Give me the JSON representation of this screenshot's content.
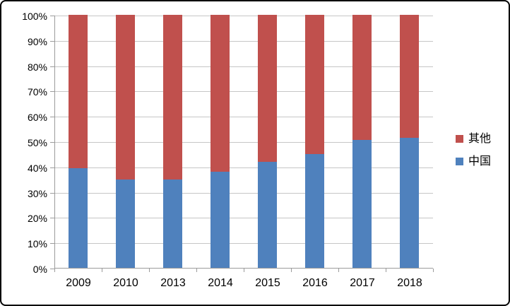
{
  "chart_data": {
    "type": "bar",
    "subtype": "stacked-100-percent-column",
    "title": "",
    "xlabel": "",
    "ylabel": "",
    "categories": [
      "2009",
      "2010",
      "2013",
      "2014",
      "2015",
      "2016",
      "2017",
      "2018"
    ],
    "series": [
      {
        "name": "中国",
        "color": "#4F81BD",
        "values": [
          39.5,
          35,
          35,
          38,
          42,
          45,
          50.5,
          51.5
        ]
      },
      {
        "name": "其他",
        "color": "#C0504D",
        "values": [
          60.5,
          65,
          65,
          62,
          58,
          55,
          49.5,
          48.5
        ]
      }
    ],
    "legend": [
      {
        "label": "其他",
        "color": "#C0504D"
      },
      {
        "label": "中国",
        "color": "#4F81BD"
      }
    ],
    "legend_position": "right",
    "y_ticks": [
      "100%",
      "90%",
      "80%",
      "70%",
      "60%",
      "50%",
      "40%",
      "30%",
      "20%",
      "10%",
      "0%"
    ],
    "ylim": [
      0,
      100
    ],
    "grid": true
  },
  "colors": {
    "gridline": "#C6C6C6",
    "axis": "#9B9B9B",
    "text": "#000000",
    "background": "#FFFFFF",
    "border": "#000000"
  }
}
